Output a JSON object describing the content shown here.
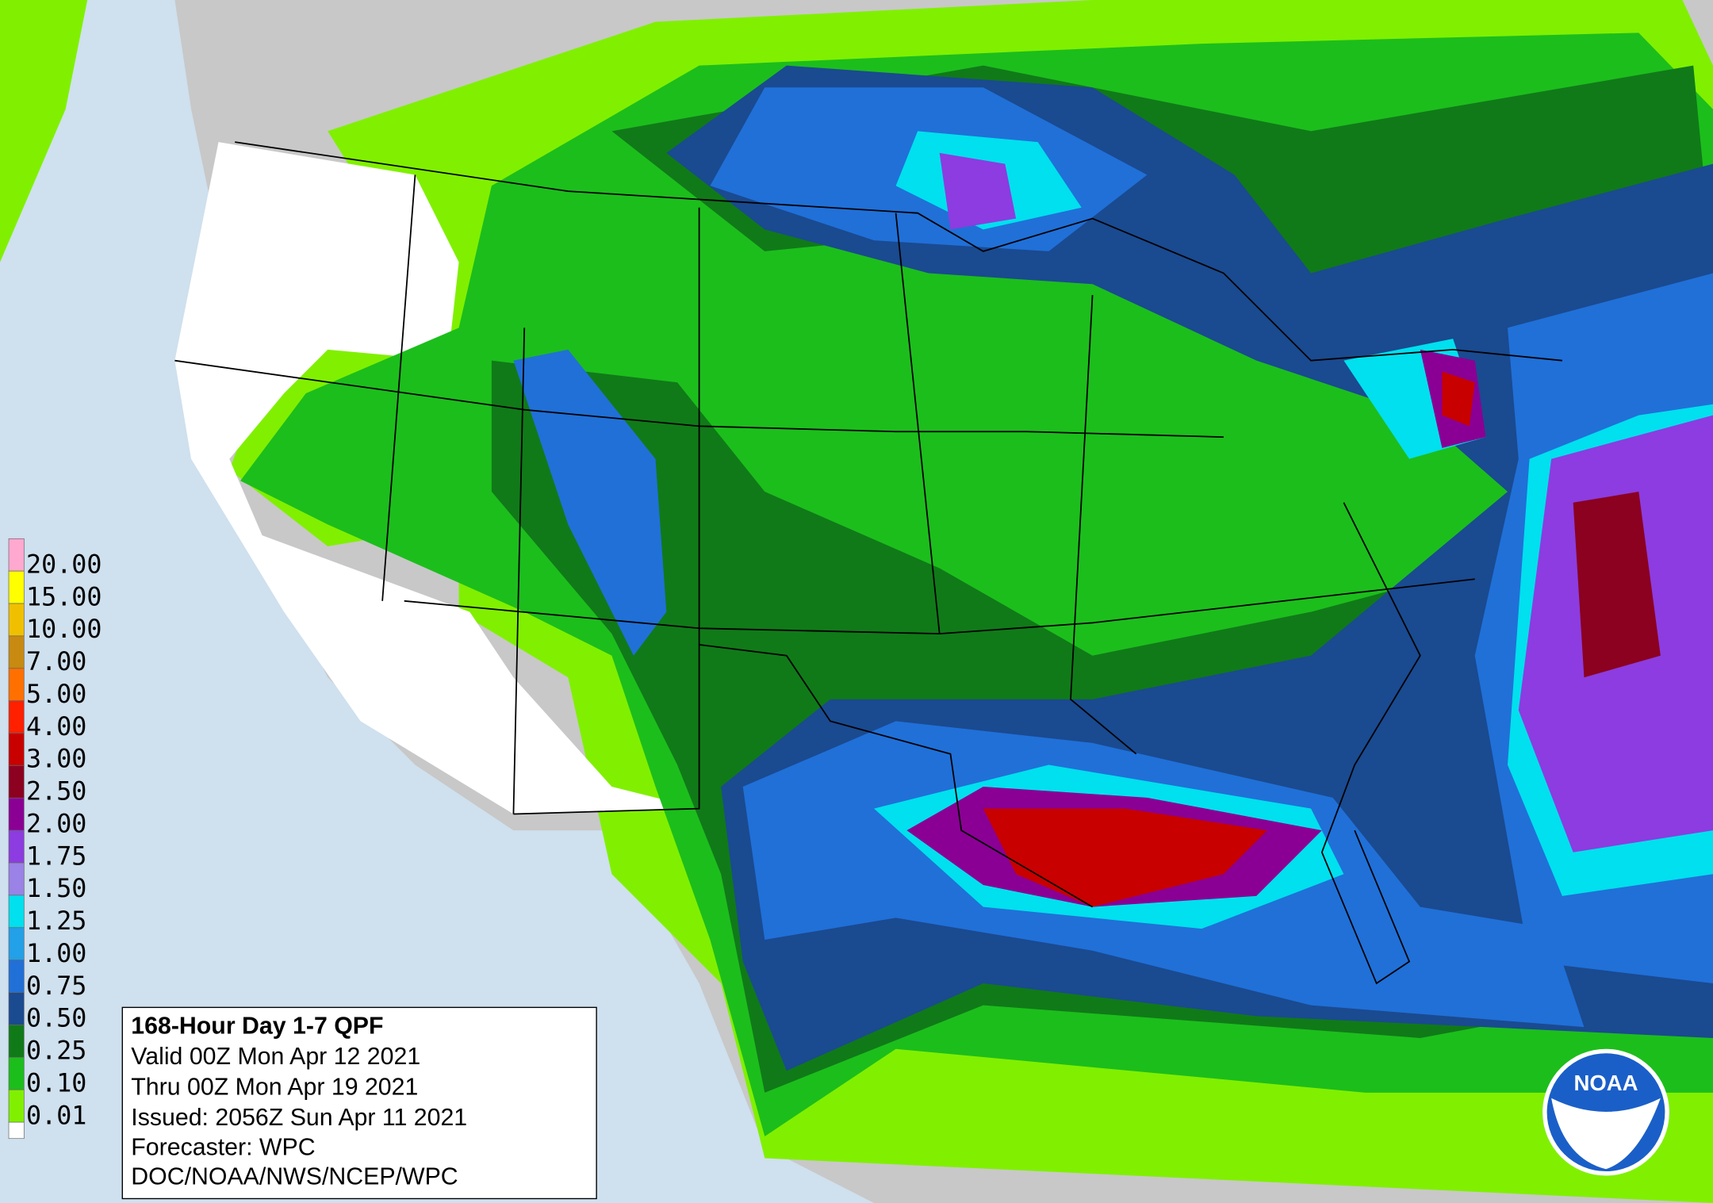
{
  "legend": {
    "entries": [
      {
        "label": "20.00",
        "color": "#ffa8d0"
      },
      {
        "label": "15.00",
        "color": "#ffff00"
      },
      {
        "label": "10.00",
        "color": "#f0c000"
      },
      {
        "label": "7.00",
        "color": "#c88a10"
      },
      {
        "label": "5.00",
        "color": "#ff7000"
      },
      {
        "label": "4.00",
        "color": "#ff2000"
      },
      {
        "label": "3.00",
        "color": "#c80000"
      },
      {
        "label": "2.50",
        "color": "#8c0020"
      },
      {
        "label": "2.00",
        "color": "#8a0094"
      },
      {
        "label": "1.75",
        "color": "#8c3ce0"
      },
      {
        "label": "1.50",
        "color": "#9a82e6"
      },
      {
        "label": "1.25",
        "color": "#00e0ee"
      },
      {
        "label": "1.00",
        "color": "#22a0e8"
      },
      {
        "label": "0.75",
        "color": "#2070d8"
      },
      {
        "label": "0.50",
        "color": "#1a4a90"
      },
      {
        "label": "0.25",
        "color": "#107a18"
      },
      {
        "label": "0.10",
        "color": "#1cbe1c"
      },
      {
        "label": "0.01",
        "color": "#80f000"
      }
    ]
  },
  "info": {
    "title": "168-Hour Day 1-7 QPF",
    "lines": [
      "Valid 00Z Mon Apr 12 2021",
      "Thru 00Z Mon Apr 19 2021",
      "Issued: 2056Z Sun Apr 11 2021",
      "Forecaster: WPC",
      "DOC/NOAA/NWS/NCEP/WPC"
    ]
  },
  "logo": {
    "text": "NOAA"
  }
}
